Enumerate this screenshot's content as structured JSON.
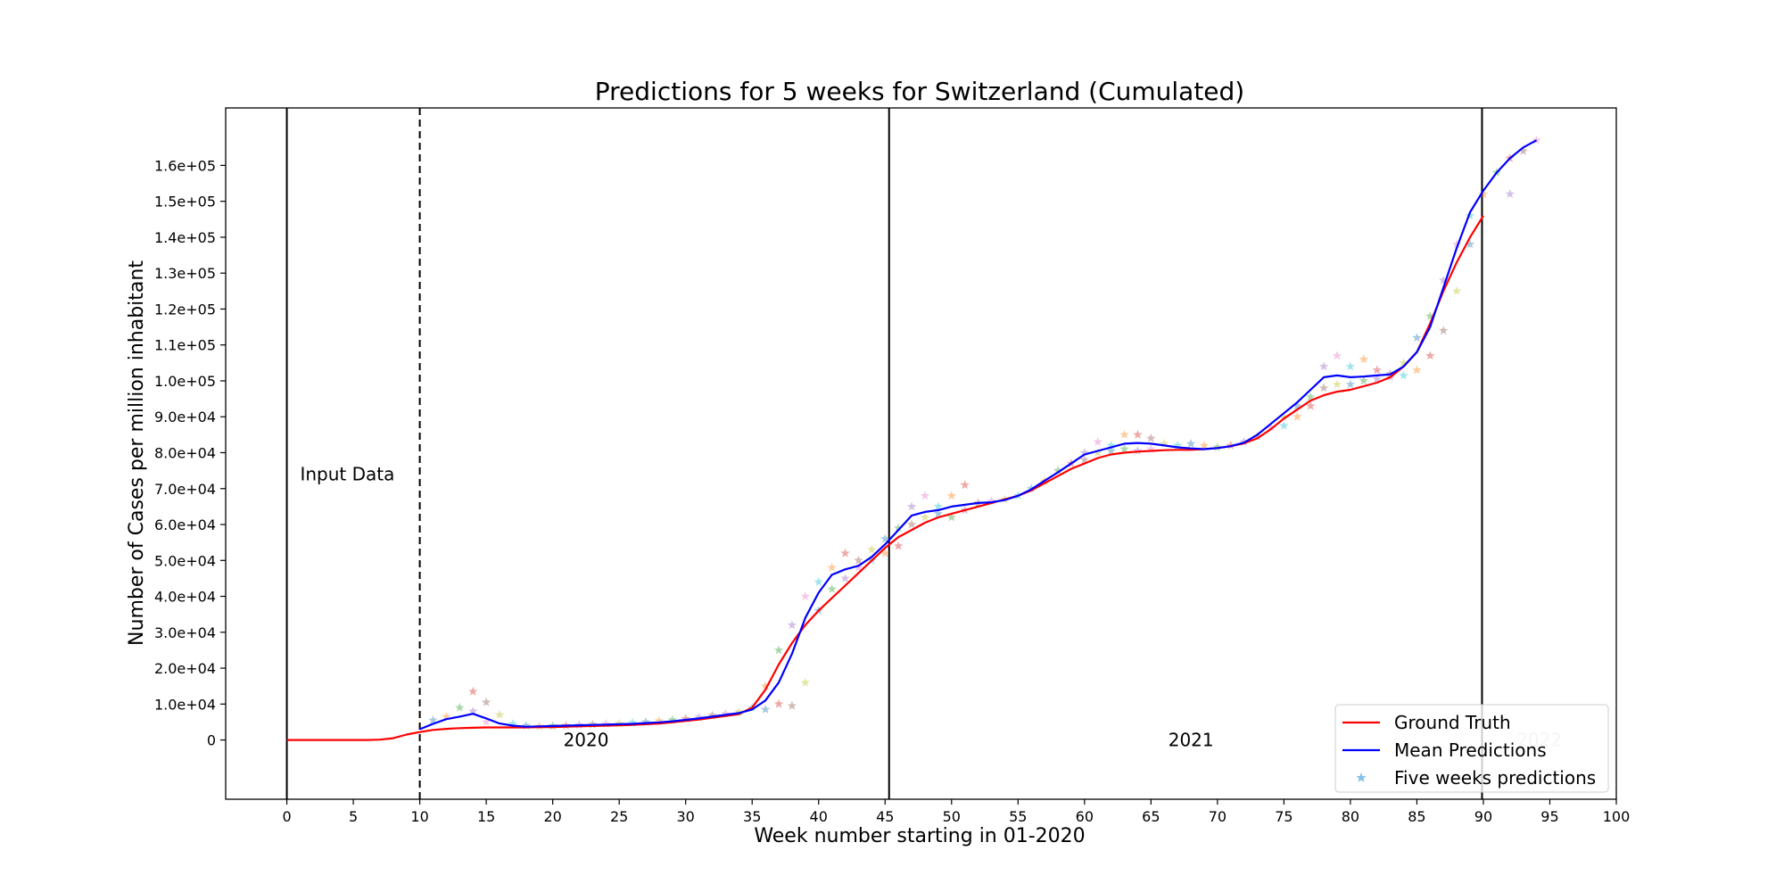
{
  "chart_data": {
    "type": "line",
    "title": "Predictions for 5 weeks for Switzerland (Cumulated)",
    "xlabel": "Week number starting in 01-2020",
    "ylabel": "Number of Cases per million inhabitant",
    "xlim": [
      -4.6,
      100
    ],
    "ylim": [
      -16500,
      176000
    ],
    "xticks": [
      0,
      5,
      10,
      15,
      20,
      25,
      30,
      35,
      40,
      45,
      50,
      55,
      60,
      65,
      70,
      75,
      80,
      85,
      90,
      95,
      100
    ],
    "yticks": [
      0,
      10000,
      20000,
      30000,
      40000,
      50000,
      60000,
      70000,
      80000,
      90000,
      100000,
      110000,
      120000,
      130000,
      140000,
      150000,
      160000
    ],
    "ytick_labels": [
      "0",
      "1.0e+04",
      "2.0e+04",
      "3.0e+04",
      "4.0e+04",
      "5.0e+04",
      "6.0e+04",
      "7.0e+04",
      "8.0e+04",
      "9.0e+04",
      "1.0e+05",
      "1.1e+05",
      "1.2e+05",
      "1.3e+05",
      "1.4e+05",
      "1.5e+05",
      "1.6e+05"
    ],
    "grid": false,
    "legend_position": "lower-right",
    "vlines": [
      {
        "x": 0,
        "style": "solid"
      },
      {
        "x": 10,
        "style": "dashed"
      },
      {
        "x": 45.3,
        "style": "solid"
      },
      {
        "x": 89.9,
        "style": "solid"
      }
    ],
    "annotations": [
      {
        "text": "Input Data",
        "x": 1,
        "y": 74000,
        "color": "#000000"
      },
      {
        "text": "2020",
        "x": 20.8,
        "y": 0,
        "color": "#000000"
      },
      {
        "text": "2021",
        "x": 66.3,
        "y": 0,
        "color": "#000000"
      },
      {
        "text": "2022",
        "x": 92.5,
        "y": 0,
        "color": "#cccccc"
      }
    ],
    "series": [
      {
        "name": "Ground Truth",
        "color": "#ff0000",
        "kind": "line",
        "x": [
          0,
          1,
          2,
          3,
          4,
          5,
          6,
          7,
          8,
          9,
          10,
          11,
          12,
          13,
          14,
          15,
          16,
          17,
          18,
          19,
          20,
          21,
          22,
          23,
          24,
          25,
          26,
          27,
          28,
          29,
          30,
          31,
          32,
          33,
          34,
          35,
          36,
          37,
          38,
          39,
          40,
          41,
          42,
          43,
          44,
          45,
          46,
          47,
          48,
          49,
          50,
          51,
          52,
          53,
          54,
          55,
          56,
          57,
          58,
          59,
          60,
          61,
          62,
          63,
          64,
          65,
          66,
          67,
          68,
          69,
          70,
          71,
          72,
          73,
          74,
          75,
          76,
          77,
          78,
          79,
          80,
          81,
          82,
          83,
          84,
          85,
          86,
          87,
          88,
          89,
          90
        ],
        "y": [
          0,
          0,
          0,
          0,
          0,
          0,
          0,
          100,
          500,
          1500,
          2200,
          2800,
          3100,
          3300,
          3400,
          3500,
          3500,
          3500,
          3500,
          3600,
          3600,
          3700,
          3800,
          3900,
          4000,
          4100,
          4200,
          4400,
          4600,
          4900,
          5300,
          5700,
          6200,
          6700,
          7200,
          9000,
          14000,
          21000,
          27000,
          32000,
          36000,
          39500,
          43000,
          46500,
          50000,
          53500,
          56500,
          58500,
          60500,
          62000,
          63000,
          64000,
          65000,
          66000,
          67000,
          68000,
          69500,
          71500,
          73500,
          75500,
          77000,
          78500,
          79500,
          80000,
          80300,
          80500,
          80700,
          80800,
          80800,
          81000,
          81300,
          81800,
          82600,
          84000,
          86500,
          89500,
          92000,
          94500,
          96000,
          97000,
          97500,
          98500,
          99500,
          101000,
          104000,
          108000,
          116000,
          125000,
          133000,
          140000,
          146000
        ]
      },
      {
        "name": "Mean Predictions",
        "color": "#0000ff",
        "kind": "line",
        "x": [
          10,
          11,
          12,
          13,
          14,
          15,
          16,
          17,
          18,
          19,
          20,
          21,
          22,
          23,
          24,
          25,
          26,
          27,
          28,
          29,
          30,
          31,
          32,
          33,
          34,
          35,
          36,
          37,
          38,
          39,
          40,
          41,
          42,
          43,
          44,
          45,
          46,
          47,
          48,
          49,
          50,
          51,
          52,
          53,
          54,
          55,
          56,
          57,
          58,
          59,
          60,
          61,
          62,
          63,
          64,
          65,
          66,
          67,
          68,
          69,
          70,
          71,
          72,
          73,
          74,
          75,
          76,
          77,
          78,
          79,
          80,
          81,
          82,
          83,
          84,
          85,
          86,
          87,
          88,
          89,
          90,
          91,
          92,
          93,
          94
        ],
        "y": [
          3000,
          4500,
          5800,
          6500,
          7300,
          6000,
          4600,
          4000,
          3700,
          3800,
          3900,
          4000,
          4100,
          4200,
          4300,
          4400,
          4500,
          4700,
          4900,
          5200,
          5600,
          6000,
          6500,
          7000,
          7500,
          8500,
          11000,
          16000,
          24000,
          34000,
          41000,
          46000,
          47500,
          48500,
          51000,
          54500,
          58500,
          62500,
          63500,
          64000,
          65000,
          65500,
          66000,
          66200,
          66800,
          68000,
          69800,
          72200,
          74500,
          77000,
          79500,
          80500,
          81500,
          82500,
          82700,
          82500,
          82000,
          81500,
          81200,
          81000,
          81300,
          81800,
          82800,
          85000,
          88000,
          91000,
          94000,
          97500,
          101000,
          101500,
          101000,
          101200,
          101500,
          101800,
          104000,
          108000,
          115000,
          126000,
          137000,
          147000,
          153000,
          158000,
          162000,
          165000,
          167000
        ]
      },
      {
        "name": "Five weeks predictions",
        "color": "#85c1e9",
        "kind": "scatter",
        "marker": "star",
        "colors": [
          "#1f77b4",
          "#ff7f0e",
          "#2ca02c",
          "#d62728",
          "#9467bd",
          "#8c564b",
          "#e377c2",
          "#bcbd22",
          "#17becf"
        ],
        "points": [
          [
            11,
            5500
          ],
          [
            12,
            6500
          ],
          [
            13,
            9000
          ],
          [
            14,
            13500
          ],
          [
            14,
            8000
          ],
          [
            15,
            10500
          ],
          [
            15,
            5000
          ],
          [
            16,
            7000
          ],
          [
            17,
            4500
          ],
          [
            18,
            4000
          ],
          [
            19,
            3800
          ],
          [
            20,
            3900
          ],
          [
            21,
            4000
          ],
          [
            22,
            4200
          ],
          [
            23,
            4300
          ],
          [
            24,
            4500
          ],
          [
            25,
            4600
          ],
          [
            26,
            4800
          ],
          [
            27,
            5000
          ],
          [
            28,
            5300
          ],
          [
            29,
            5600
          ],
          [
            30,
            5900
          ],
          [
            31,
            6300
          ],
          [
            32,
            6800
          ],
          [
            33,
            7300
          ],
          [
            34,
            7800
          ],
          [
            35,
            9000
          ],
          [
            36,
            8500
          ],
          [
            36,
            15000
          ],
          [
            37,
            25000
          ],
          [
            37,
            10000
          ],
          [
            38,
            32000
          ],
          [
            38,
            9500
          ],
          [
            39,
            40000
          ],
          [
            39,
            16000
          ],
          [
            40,
            44000
          ],
          [
            40,
            36000
          ],
          [
            41,
            48000
          ],
          [
            41,
            42000
          ],
          [
            42,
            52000
          ],
          [
            42,
            45000
          ],
          [
            43,
            50000
          ],
          [
            43,
            48000
          ],
          [
            44,
            53000
          ],
          [
            44,
            50000
          ],
          [
            45,
            56000
          ],
          [
            45,
            52000
          ],
          [
            46,
            59000
          ],
          [
            46,
            54000
          ],
          [
            47,
            65000
          ],
          [
            47,
            60000
          ],
          [
            48,
            68000
          ],
          [
            48,
            62000
          ],
          [
            49,
            65000
          ],
          [
            49,
            63000
          ],
          [
            50,
            68000
          ],
          [
            50,
            62000
          ],
          [
            51,
            71000
          ],
          [
            51,
            64000
          ],
          [
            52,
            66000
          ],
          [
            53,
            66500
          ],
          [
            54,
            67000
          ],
          [
            55,
            68000
          ],
          [
            56,
            70000
          ],
          [
            57,
            72000
          ],
          [
            58,
            75000
          ],
          [
            59,
            77000
          ],
          [
            60,
            80000
          ],
          [
            60,
            78000
          ],
          [
            61,
            83000
          ],
          [
            61,
            80000
          ],
          [
            62,
            82000
          ],
          [
            62,
            80500
          ],
          [
            63,
            85000
          ],
          [
            63,
            81000
          ],
          [
            64,
            85000
          ],
          [
            64,
            80500
          ],
          [
            65,
            84000
          ],
          [
            65,
            81000
          ],
          [
            66,
            82500
          ],
          [
            67,
            82000
          ],
          [
            68,
            82500
          ],
          [
            69,
            82000
          ],
          [
            70,
            81500
          ],
          [
            71,
            82000
          ],
          [
            72,
            83000
          ],
          [
            73,
            84500
          ],
          [
            74,
            87000
          ],
          [
            75,
            90000
          ],
          [
            75,
            87500
          ],
          [
            76,
            93000
          ],
          [
            76,
            90000
          ],
          [
            77,
            95500
          ],
          [
            77,
            93000
          ],
          [
            78,
            104000
          ],
          [
            78,
            98000
          ],
          [
            79,
            107000
          ],
          [
            79,
            99000
          ],
          [
            80,
            104000
          ],
          [
            80,
            99000
          ],
          [
            81,
            106000
          ],
          [
            81,
            100000
          ],
          [
            82,
            103000
          ],
          [
            82,
            100500
          ],
          [
            83,
            102000
          ],
          [
            83,
            101000
          ],
          [
            84,
            105000
          ],
          [
            84,
            101500
          ],
          [
            85,
            112000
          ],
          [
            85,
            103000
          ],
          [
            86,
            118000
          ],
          [
            86,
            107000
          ],
          [
            87,
            128000
          ],
          [
            87,
            114000
          ],
          [
            88,
            138000
          ],
          [
            88,
            125000
          ],
          [
            89,
            146000
          ],
          [
            89,
            138000
          ],
          [
            90,
            152000
          ],
          [
            91,
            158000
          ],
          [
            92,
            162000
          ],
          [
            92,
            152000
          ],
          [
            93,
            164000
          ],
          [
            94,
            167000
          ]
        ]
      }
    ]
  }
}
